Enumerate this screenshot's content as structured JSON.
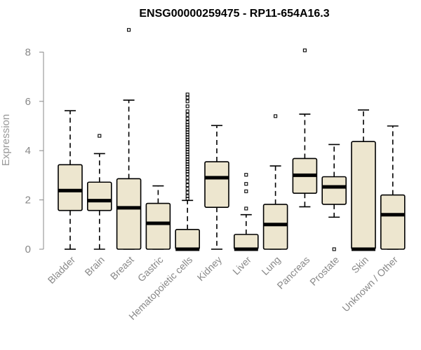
{
  "chart_data": {
    "type": "boxplot",
    "title": "ENSG00000259475 - RP11-654A16.3",
    "xlabel": "",
    "ylabel": "Expression",
    "ylim": [
      0,
      9
    ],
    "yticks": [
      0,
      2,
      4,
      6,
      8
    ],
    "colors": {
      "box_fill": "#ede6cf",
      "axis": "#888888",
      "stroke": "#000000"
    },
    "categories": [
      "Bladder",
      "Brain",
      "Breast",
      "Gastric",
      "Hematopoietic cells",
      "Kidney",
      "Liver",
      "Lung",
      "Pancreas",
      "Prostate",
      "Skin",
      "Unknown / Other"
    ],
    "boxes": [
      {
        "category": "Bladder",
        "min": 0,
        "q1": 1.57,
        "median": 2.38,
        "q3": 3.43,
        "max": 5.62,
        "outliers": []
      },
      {
        "category": "Brain",
        "min": 0,
        "q1": 1.57,
        "median": 1.97,
        "q3": 2.72,
        "max": 3.88,
        "outliers": [
          4.6
        ]
      },
      {
        "category": "Breast",
        "min": 0,
        "q1": 0,
        "median": 1.68,
        "q3": 2.86,
        "max": 6.05,
        "outliers": [
          8.9
        ]
      },
      {
        "category": "Gastric",
        "min": 0,
        "q1": 0,
        "median": 1.05,
        "q3": 1.86,
        "max": 2.57,
        "outliers": []
      },
      {
        "category": "Hematopoietic cells",
        "min": 0,
        "q1": 0,
        "median": 0,
        "q3": 0.8,
        "max": 1.98,
        "outliers": [
          2.05,
          2.15,
          2.3,
          2.45,
          2.6,
          2.75,
          2.9,
          3.05,
          3.15,
          3.25,
          3.35,
          3.45,
          3.55,
          3.65,
          3.75,
          3.85,
          3.95,
          4.05,
          4.15,
          4.25,
          4.35,
          4.45,
          4.55,
          4.65,
          4.75,
          4.85,
          4.95,
          5.05,
          5.15,
          5.3,
          5.45,
          5.6,
          5.8,
          6.0,
          6.15,
          6.28
        ]
      },
      {
        "category": "Kidney",
        "min": 0,
        "q1": 1.7,
        "median": 2.9,
        "q3": 3.55,
        "max": 5.02,
        "outliers": []
      },
      {
        "category": "Liver",
        "min": 0,
        "q1": 0,
        "median": 0,
        "q3": 0.6,
        "max": 1.4,
        "outliers": [
          1.65,
          2.35,
          2.65,
          3.02
        ]
      },
      {
        "category": "Lung",
        "min": 0,
        "q1": 0,
        "median": 1.0,
        "q3": 1.82,
        "max": 3.38,
        "outliers": [
          5.4
        ]
      },
      {
        "category": "Pancreas",
        "min": 1.72,
        "q1": 2.27,
        "median": 3.0,
        "q3": 3.68,
        "max": 5.48,
        "outliers": [
          8.07
        ]
      },
      {
        "category": "Prostate",
        "min": 1.3,
        "q1": 1.82,
        "median": 2.53,
        "q3": 2.94,
        "max": 4.25,
        "outliers": [
          0
        ]
      },
      {
        "category": "Skin",
        "min": 0,
        "q1": 0,
        "median": 0,
        "q3": 4.37,
        "max": 5.65,
        "outliers": []
      },
      {
        "category": "Unknown / Other",
        "min": 0,
        "q1": 0,
        "median": 1.4,
        "q3": 2.2,
        "max": 5.0,
        "outliers": []
      }
    ]
  }
}
